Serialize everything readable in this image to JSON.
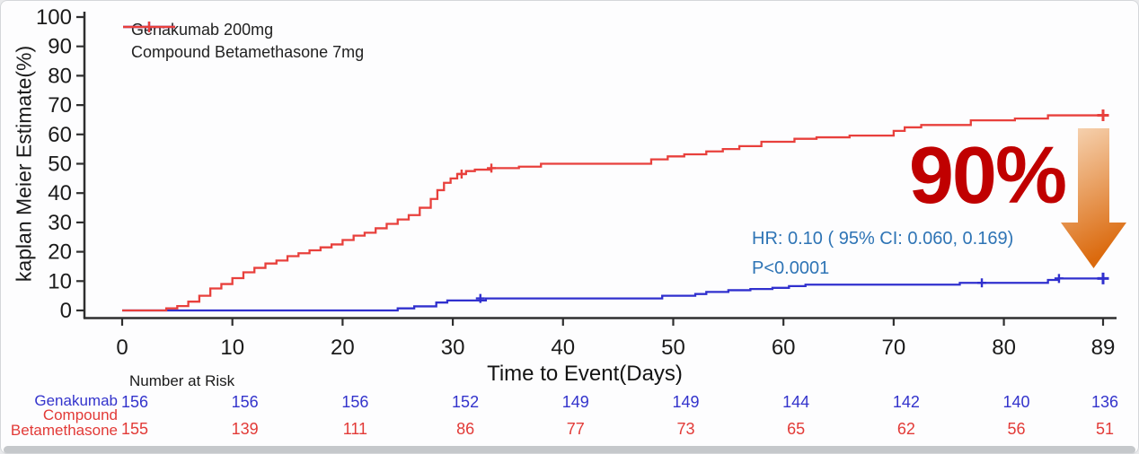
{
  "figure": {
    "annotations": {
      "effect_size": "90%",
      "effect_color": "#C00000",
      "hr_line": "HR: 0.10 ( 95% CI: 0.060, 0.169)",
      "p_line": "P<0.0001",
      "stat_text_color": "#2E74B5",
      "arrow_icon": "down-arrow",
      "arrow_color_top": "#F7D7B8",
      "arrow_color_bottom": "#DB6A0E"
    },
    "risk_table": {
      "title": "Number at Risk",
      "timepoints": [
        0,
        10,
        20,
        30,
        40,
        50,
        60,
        70,
        80,
        89
      ],
      "rows": [
        {
          "label": "Genakumab",
          "color": "#3333CC",
          "values": [
            156,
            156,
            156,
            152,
            149,
            149,
            144,
            142,
            140,
            136
          ]
        },
        {
          "label": "Compound Betamethasone",
          "color": "#E23A37",
          "values": [
            155,
            139,
            111,
            86,
            77,
            73,
            65,
            62,
            56,
            51
          ]
        }
      ]
    },
    "window": {
      "bottom_scrollbar": true
    }
  },
  "chart_data": {
    "type": "line",
    "subtype": "kaplan-meier-step",
    "title": "",
    "xlabel": "Time to Event(Days)",
    "ylabel": "kaplan Meier Estimate(%)",
    "xlim": [
      0,
      89
    ],
    "ylim": [
      0,
      100
    ],
    "xticks": [
      0,
      10,
      20,
      30,
      40,
      50,
      60,
      70,
      80,
      89
    ],
    "yticks": [
      0,
      10,
      20,
      30,
      40,
      50,
      60,
      70,
      80,
      90,
      100
    ],
    "grid": false,
    "legend_position": "inside-top-left",
    "series": [
      {
        "name": "Genakumab 200mg",
        "color": "#3030CE",
        "events": [
          [
            25,
            0.7
          ],
          [
            26.5,
            1.4
          ],
          [
            28.5,
            2.7
          ],
          [
            29.5,
            3.4
          ],
          [
            33,
            4.1
          ],
          [
            49,
            5
          ],
          [
            52,
            5.6
          ],
          [
            53,
            6.3
          ],
          [
            55,
            6.9
          ],
          [
            57,
            7.3
          ],
          [
            59,
            7.7
          ],
          [
            60.5,
            8.3
          ],
          [
            62,
            8.8
          ],
          [
            76,
            9.4
          ],
          [
            84,
            10.4
          ],
          [
            85,
            10.9
          ]
        ],
        "end_day": 89,
        "end_value": 10.9,
        "censor_marks": [
          [
            32.5,
            4.1
          ],
          [
            78,
            9.4
          ],
          [
            85,
            10.9
          ],
          [
            89,
            10.9
          ]
        ]
      },
      {
        "name": "Compound Betamethasone 7mg",
        "color": "#E8403C",
        "events": [
          [
            4,
            0.7
          ],
          [
            5,
            1.5
          ],
          [
            6,
            3
          ],
          [
            7,
            5
          ],
          [
            8,
            7.5
          ],
          [
            9,
            9
          ],
          [
            10,
            11
          ],
          [
            11,
            13
          ],
          [
            12,
            14.5
          ],
          [
            13,
            16
          ],
          [
            14,
            17
          ],
          [
            15,
            18.5
          ],
          [
            16,
            19.5
          ],
          [
            17,
            20.5
          ],
          [
            18,
            21.5
          ],
          [
            19,
            22.5
          ],
          [
            20,
            24
          ],
          [
            21,
            25.5
          ],
          [
            22,
            26.5
          ],
          [
            23,
            28
          ],
          [
            24,
            29.5
          ],
          [
            25,
            31
          ],
          [
            26,
            32.5
          ],
          [
            27,
            35
          ],
          [
            28,
            38
          ],
          [
            28.6,
            41
          ],
          [
            29.2,
            43.5
          ],
          [
            29.8,
            45
          ],
          [
            30.4,
            46.5
          ],
          [
            31.2,
            47.5
          ],
          [
            32,
            48
          ],
          [
            33.5,
            48.5
          ],
          [
            36,
            49
          ],
          [
            38,
            50
          ],
          [
            48,
            51.5
          ],
          [
            49.5,
            52.5
          ],
          [
            51,
            53.2
          ],
          [
            53,
            54.2
          ],
          [
            54.5,
            55
          ],
          [
            56,
            56
          ],
          [
            58,
            57.5
          ],
          [
            61,
            58.5
          ],
          [
            63,
            59
          ],
          [
            66,
            59.6
          ],
          [
            70,
            61.2
          ],
          [
            71,
            62.4
          ],
          [
            72.5,
            63.2
          ],
          [
            77,
            64.8
          ],
          [
            81,
            65.4
          ],
          [
            84,
            66.5
          ]
        ],
        "end_day": 89,
        "end_value": 66.5,
        "censor_marks": [
          [
            30.8,
            46.5
          ],
          [
            33.5,
            48.5
          ],
          [
            89,
            66.5
          ]
        ]
      }
    ]
  }
}
